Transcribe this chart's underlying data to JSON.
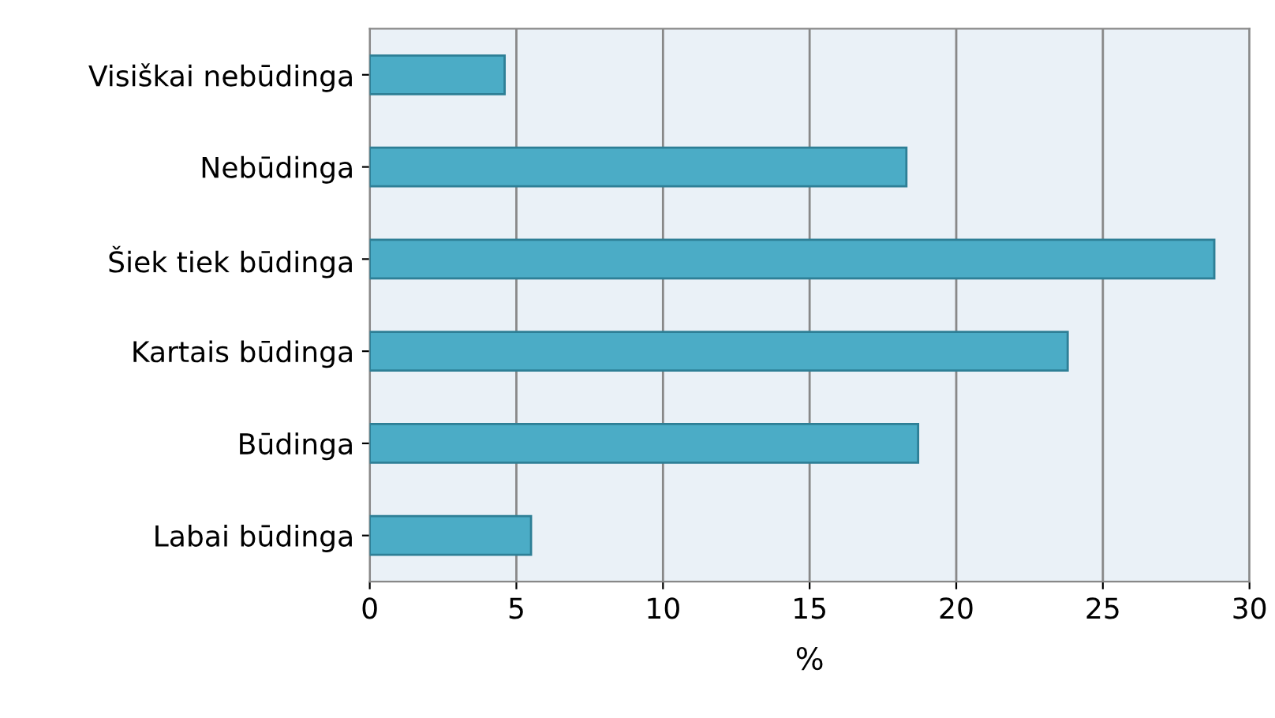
{
  "chart_data": {
    "type": "bar",
    "orientation": "horizontal",
    "categories": [
      "Visiškai nebūdinga",
      "Nebūdinga",
      "Šiek tiek būdinga",
      "Kartais būdinga",
      "Būdinga",
      "Labai būdinga"
    ],
    "values": [
      4.6,
      18.3,
      28.8,
      23.8,
      18.7,
      5.5
    ],
    "color": "#4bacc6",
    "xlabel": "%",
    "xlim": [
      0,
      30
    ],
    "xticks": [
      0,
      5,
      10,
      15,
      20,
      25,
      30
    ],
    "grid": "x"
  }
}
